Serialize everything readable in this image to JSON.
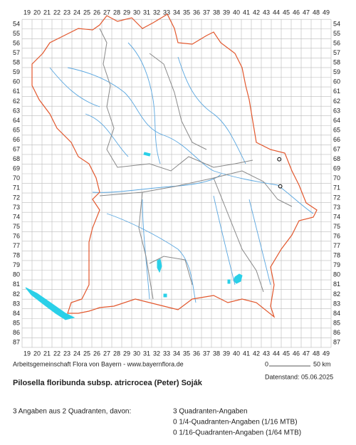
{
  "map": {
    "x_labels": [
      19,
      20,
      21,
      22,
      23,
      24,
      25,
      26,
      27,
      28,
      29,
      30,
      31,
      32,
      33,
      34,
      35,
      36,
      37,
      38,
      39,
      40,
      41,
      42,
      43,
      44,
      45,
      46,
      47,
      48,
      49
    ],
    "y_labels": [
      54,
      55,
      56,
      57,
      58,
      59,
      60,
      61,
      62,
      63,
      64,
      65,
      66,
      67,
      68,
      69,
      70,
      71,
      72,
      73,
      74,
      75,
      76,
      77,
      78,
      79,
      80,
      81,
      82,
      83,
      84,
      85,
      86,
      87
    ],
    "records": [
      {
        "x": 44.3,
        "y": 68
      },
      {
        "x": 44.4,
        "y": 70.8
      }
    ],
    "credit": "Arbeitsgemeinschaft Flora von Bayern - www.bayernflora.de",
    "scale_start": "0",
    "scale_end": "50 km",
    "date": "Datenstand: 05.06.2025",
    "title": "Pilosella floribunda subsp. atricrocea (Peter) Soják",
    "summary": "3 Angaben aus 2 Quadranten, davon:",
    "details": [
      "3 Quadranten-Angaben",
      "0 1/4-Quadranten-Angaben (1/16 MTB)",
      "0 1/16-Quadranten-Angaben (1/64 MTB)"
    ]
  }
}
